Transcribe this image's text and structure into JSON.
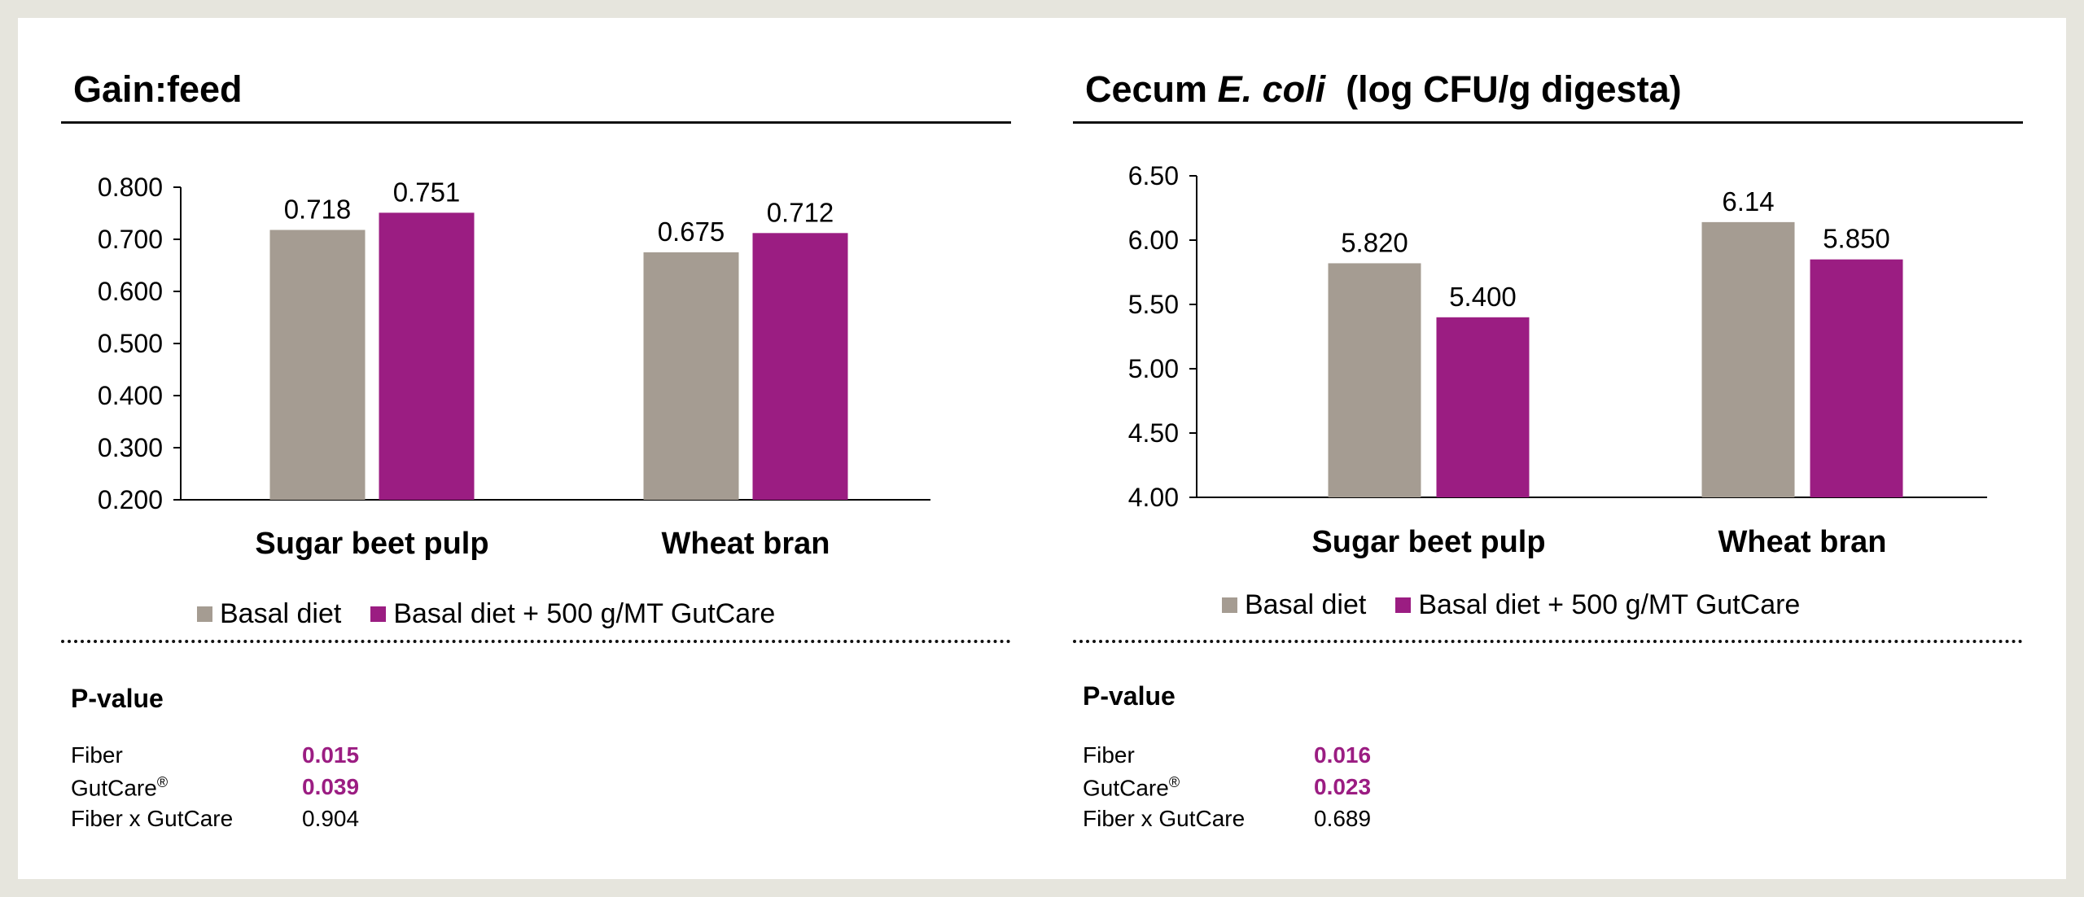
{
  "colors": {
    "basal": "#a59c92",
    "gutcare": "#9b1d82",
    "significant": "#9b1d82"
  },
  "panels": [
    {
      "title_parts": [
        {
          "text": "Gain:feed",
          "italic": false
        }
      ],
      "legend": [
        "Basal diet",
        "Basal diet + 500 g/MT GutCare"
      ],
      "pvalue": {
        "heading": "P-value",
        "rows": [
          {
            "label": "Fiber",
            "sup": "",
            "value": "0.015",
            "significant": true
          },
          {
            "label": "GutCare",
            "sup": "®",
            "value": "0.039",
            "significant": true
          },
          {
            "label": "Fiber x GutCare",
            "sup": "",
            "value": "0.904",
            "significant": false
          }
        ]
      }
    },
    {
      "title_parts": [
        {
          "text": "Cecum ",
          "italic": false
        },
        {
          "text": "E. coli",
          "italic": true
        },
        {
          "text": "  (log CFU/g digesta)",
          "italic": false
        }
      ],
      "legend": [
        "Basal diet",
        "Basal diet + 500 g/MT GutCare"
      ],
      "pvalue": {
        "heading": "P-value",
        "rows": [
          {
            "label": "Fiber",
            "sup": "",
            "value": "0.016",
            "significant": true
          },
          {
            "label": "GutCare",
            "sup": "®",
            "value": "0.023",
            "significant": true
          },
          {
            "label": "Fiber x GutCare",
            "sup": "",
            "value": "0.689",
            "significant": false
          }
        ]
      }
    }
  ],
  "chart_data": [
    {
      "type": "bar",
      "title": "Gain:feed",
      "categories": [
        "Sugar beet pulp",
        "Wheat bran"
      ],
      "series": [
        {
          "name": "Basal diet",
          "values": [
            0.718,
            0.675
          ],
          "labels": [
            "0.718",
            "0.675"
          ]
        },
        {
          "name": "Basal diet + 500 g/MT GutCare",
          "values": [
            0.751,
            0.712
          ],
          "labels": [
            "0.751",
            "0.712"
          ]
        }
      ],
      "ylim": [
        0.2,
        0.8
      ],
      "yticks": [
        "0.800",
        "0.700",
        "0.600",
        "0.500",
        "0.400",
        "0.300",
        "0.200"
      ],
      "ytick_values": [
        0.8,
        0.7,
        0.6,
        0.5,
        0.4,
        0.3,
        0.2
      ],
      "grid": false,
      "legend": "bottom"
    },
    {
      "type": "bar",
      "title": "Cecum E. coli  (log CFU/g digesta)",
      "categories": [
        "Sugar beet pulp",
        "Wheat bran"
      ],
      "series": [
        {
          "name": "Basal diet",
          "values": [
            5.82,
            6.14
          ],
          "labels": [
            "5.820",
            "6.14"
          ]
        },
        {
          "name": "Basal diet + 500 g/MT GutCare",
          "values": [
            5.4,
            5.85
          ],
          "labels": [
            "5.400",
            "5.850"
          ]
        }
      ],
      "ylim": [
        4.0,
        6.5
      ],
      "yticks": [
        "6.50",
        "6.00",
        "5.50",
        "5.00",
        "4.50",
        "4.00"
      ],
      "ytick_values": [
        6.5,
        6.0,
        5.5,
        5.0,
        4.5,
        4.0
      ],
      "grid": false,
      "legend": "bottom"
    }
  ]
}
